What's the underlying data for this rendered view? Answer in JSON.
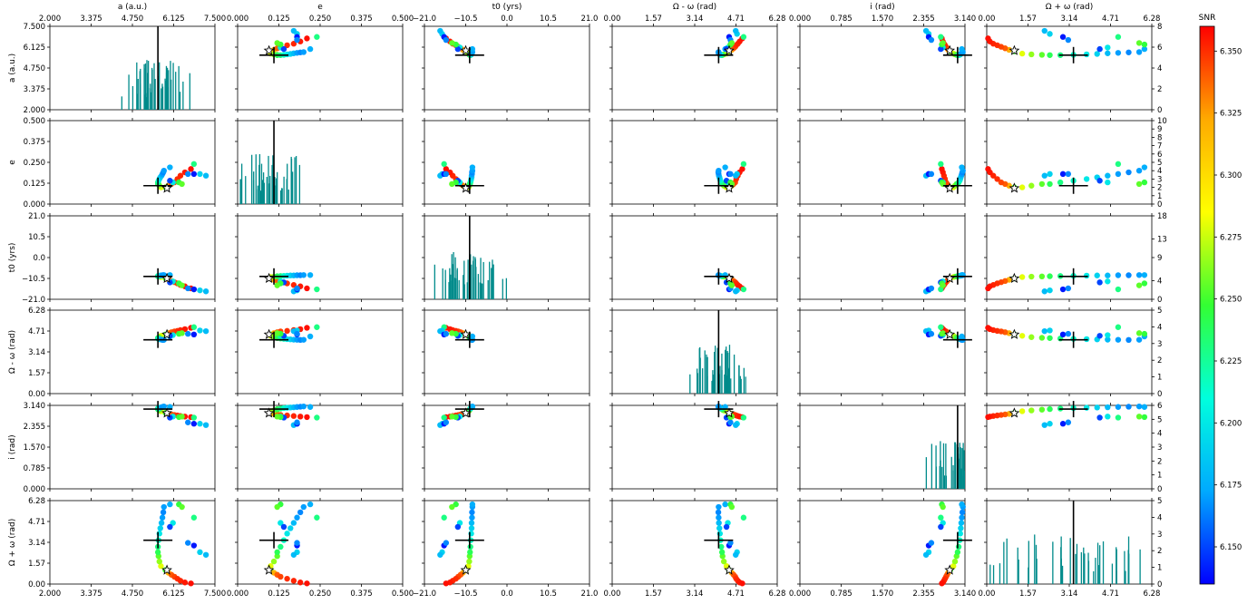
{
  "figure": {
    "colorbar_label": "SNR",
    "colorbar_ticks": [
      "6.350",
      "6.325",
      "6.300",
      "6.275",
      "6.250",
      "6.225",
      "6.200",
      "6.175",
      "6.150"
    ],
    "colorbar_range": [
      6.135,
      6.36
    ],
    "colormap": [
      "#0000ff",
      "#00aaff",
      "#00ffdd",
      "#33ff33",
      "#ffff00",
      "#ffaa00",
      "#ff0000"
    ],
    "hist_color": "#008b8b"
  },
  "chart_data": {
    "type": "scatter",
    "variables": [
      {
        "label": "a (a.u.)",
        "ticks": [
          "2.000",
          "3.375",
          "4.750",
          "6.125",
          "7.500"
        ],
        "range": [
          2.0,
          7.5
        ],
        "truth": 5.6,
        "star": 5.9
      },
      {
        "label": "e",
        "ticks": [
          "0.000",
          "0.125",
          "0.250",
          "0.375",
          "0.500"
        ],
        "range": [
          0.0,
          0.5
        ],
        "truth": 0.11,
        "star": 0.095
      },
      {
        "label": "t0 (yrs)",
        "ticks": [
          "−21.0",
          "−10.5",
          "0.0",
          "10.5",
          "21.0"
        ],
        "range": [
          -21,
          21
        ],
        "truth": -9.5,
        "star": -10.5
      },
      {
        "label": "Ω - ω (rad)",
        "ticks": [
          "0.00",
          "1.57",
          "3.14",
          "4.71",
          "6.28"
        ],
        "range": [
          0,
          6.28
        ],
        "truth": 4.05,
        "star": 4.45
      },
      {
        "label": "i (rad)",
        "ticks": [
          "0.000",
          "0.785",
          "1.570",
          "2.355",
          "3.140"
        ],
        "range": [
          0,
          3.14
        ],
        "truth": 3.0,
        "star": 2.85
      },
      {
        "label": "Ω + ω (rad)",
        "ticks": [
          "0.00",
          "1.57",
          "3.14",
          "4.71",
          "6.28"
        ],
        "range": [
          0,
          6.28
        ],
        "truth": 3.3,
        "star": 1.05
      }
    ],
    "hist_right_ticks": [
      [
        "0",
        "2",
        "4",
        "6",
        "8"
      ],
      [
        "0",
        "1",
        "2",
        "3",
        "4",
        "5",
        "6",
        "7",
        "8",
        "9",
        "10"
      ],
      [
        "0",
        "4",
        "9",
        "13",
        "18"
      ],
      [
        "0",
        "1",
        "2",
        "3",
        "4",
        "5"
      ],
      [
        "0",
        "1",
        "2",
        "3",
        "4",
        "5",
        "6"
      ],
      [
        "0",
        "1",
        "2",
        "3",
        "4",
        "5"
      ]
    ],
    "hist_max": [
      8,
      10,
      18,
      5,
      6,
      5
    ],
    "points": [
      {
        "a": 5.85,
        "e": 0.1,
        "t": -10.5,
        "om": 4.45,
        "i": 2.86,
        "op": 1.05,
        "snr": 6.25
      },
      {
        "a": 5.95,
        "e": 0.11,
        "t": -11.2,
        "om": 4.55,
        "i": 2.82,
        "op": 0.85,
        "snr": 6.32
      },
      {
        "a": 6.05,
        "e": 0.12,
        "t": -11.8,
        "om": 4.62,
        "i": 2.8,
        "op": 0.7,
        "snr": 6.34
      },
      {
        "a": 6.15,
        "e": 0.13,
        "t": -12.4,
        "om": 4.68,
        "i": 2.78,
        "op": 0.55,
        "snr": 6.345
      },
      {
        "a": 6.25,
        "e": 0.15,
        "t": -13.0,
        "om": 4.72,
        "i": 2.76,
        "op": 0.4,
        "snr": 6.35
      },
      {
        "a": 6.35,
        "e": 0.17,
        "t": -13.8,
        "om": 4.78,
        "i": 2.74,
        "op": 0.25,
        "snr": 6.352
      },
      {
        "a": 6.5,
        "e": 0.19,
        "t": -14.5,
        "om": 4.85,
        "i": 2.72,
        "op": 0.12,
        "snr": 6.355
      },
      {
        "a": 6.7,
        "e": 0.21,
        "t": -15.5,
        "om": 4.95,
        "i": 2.7,
        "op": 0.05,
        "snr": 6.357
      },
      {
        "a": 5.7,
        "e": 0.1,
        "t": -9.8,
        "om": 4.35,
        "i": 2.92,
        "op": 1.35,
        "snr": 6.28
      },
      {
        "a": 5.65,
        "e": 0.11,
        "t": -9.6,
        "om": 4.25,
        "i": 2.95,
        "op": 1.7,
        "snr": 6.265
      },
      {
        "a": 5.62,
        "e": 0.12,
        "t": -9.5,
        "om": 4.2,
        "i": 2.98,
        "op": 2.1,
        "snr": 6.255
      },
      {
        "a": 5.6,
        "e": 0.12,
        "t": -9.4,
        "om": 4.18,
        "i": 3.0,
        "op": 2.4,
        "snr": 6.24
      },
      {
        "a": 5.6,
        "e": 0.13,
        "t": -9.3,
        "om": 4.15,
        "i": 3.02,
        "op": 2.8,
        "snr": 6.23
      },
      {
        "a": 5.62,
        "e": 0.14,
        "t": -9.2,
        "om": 4.12,
        "i": 3.04,
        "op": 3.3,
        "snr": 6.215
      },
      {
        "a": 5.65,
        "e": 0.15,
        "t": -9.1,
        "om": 4.1,
        "i": 3.05,
        "op": 3.8,
        "snr": 6.2
      },
      {
        "a": 5.68,
        "e": 0.16,
        "t": -9.0,
        "om": 4.08,
        "i": 3.06,
        "op": 4.2,
        "snr": 6.19
      },
      {
        "a": 5.72,
        "e": 0.17,
        "t": -9.0,
        "om": 4.06,
        "i": 3.07,
        "op": 4.6,
        "snr": 6.18
      },
      {
        "a": 5.75,
        "e": 0.18,
        "t": -8.9,
        "om": 4.05,
        "i": 3.08,
        "op": 5.0,
        "snr": 6.17
      },
      {
        "a": 5.78,
        "e": 0.19,
        "t": -8.9,
        "om": 4.04,
        "i": 3.09,
        "op": 5.4,
        "snr": 6.165
      },
      {
        "a": 5.8,
        "e": 0.2,
        "t": -8.8,
        "om": 4.05,
        "i": 3.1,
        "op": 5.8,
        "snr": 6.17
      },
      {
        "a": 6.0,
        "e": 0.22,
        "t": -8.8,
        "om": 4.3,
        "i": 3.08,
        "op": 6.0,
        "snr": 6.175
      },
      {
        "a": 6.8,
        "e": 0.24,
        "t": -16.0,
        "om": 5.0,
        "i": 2.68,
        "op": 5.0,
        "snr": 6.23
      },
      {
        "a": 7.0,
        "e": 0.18,
        "t": -16.5,
        "om": 4.75,
        "i": 2.45,
        "op": 2.4,
        "snr": 6.19
      },
      {
        "a": 7.2,
        "e": 0.17,
        "t": -17.0,
        "om": 4.7,
        "i": 2.4,
        "op": 2.2,
        "snr": 6.18
      },
      {
        "a": 6.8,
        "e": 0.18,
        "t": -16.0,
        "om": 4.45,
        "i": 2.45,
        "op": 2.9,
        "snr": 6.14
      },
      {
        "a": 6.6,
        "e": 0.18,
        "t": -15.5,
        "om": 4.5,
        "i": 2.5,
        "op": 3.1,
        "snr": 6.165
      },
      {
        "a": 6.1,
        "e": 0.13,
        "t": -12.0,
        "om": 4.4,
        "i": 2.72,
        "op": 4.6,
        "snr": 6.2
      },
      {
        "a": 6.0,
        "e": 0.14,
        "t": -12.5,
        "om": 4.35,
        "i": 2.68,
        "op": 4.3,
        "snr": 6.15
      },
      {
        "a": 6.3,
        "e": 0.13,
        "t": -13.0,
        "om": 4.5,
        "i": 2.7,
        "op": 6.0,
        "snr": 6.245
      },
      {
        "a": 6.4,
        "e": 0.12,
        "t": -14.0,
        "om": 4.55,
        "i": 2.72,
        "op": 5.8,
        "snr": 6.255
      }
    ]
  }
}
